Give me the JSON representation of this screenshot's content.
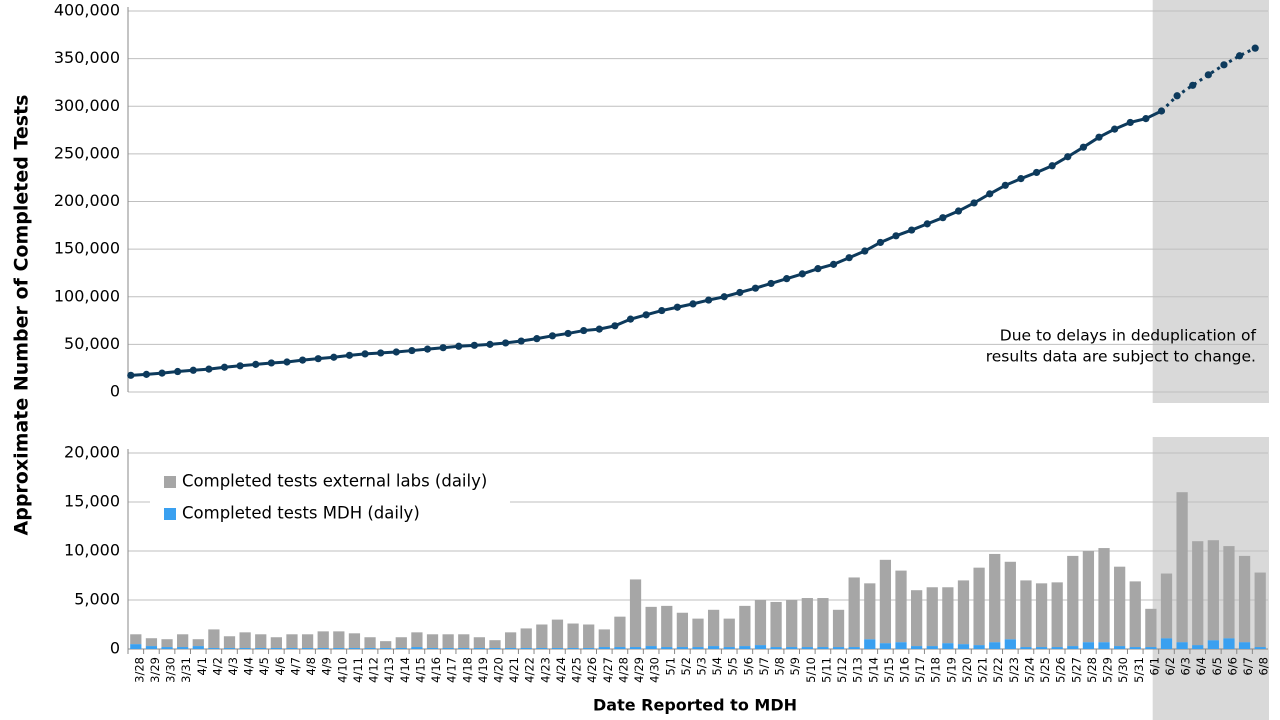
{
  "chart_data": [
    {
      "type": "line",
      "ylabel": "Approximate Number of Completed Tests",
      "color": "#0d3a5c",
      "values": [
        17500,
        18500,
        19800,
        21500,
        22800,
        24000,
        26000,
        27500,
        29000,
        30500,
        31500,
        33500,
        35000,
        36500,
        38500,
        40000,
        41000,
        42000,
        43500,
        45000,
        46500,
        48000,
        49000,
        50000,
        51500,
        53500,
        56000,
        59000,
        61500,
        64500,
        66000,
        69500,
        76500,
        81000,
        85500,
        89000,
        92500,
        96500,
        100000,
        104500,
        109000,
        114000,
        119000,
        124000,
        129500,
        134000,
        141000,
        148000,
        157000,
        164000,
        170000,
        176500,
        183000,
        190000,
        198500,
        208000,
        217000,
        224000,
        230500,
        237500,
        247000,
        257000,
        267500,
        276000,
        283000,
        287000,
        295000,
        311000,
        322000,
        333000,
        343500,
        353000,
        361000
      ],
      "ylim": [
        0,
        400000
      ],
      "yticks": [
        0,
        {
          "value": 50000,
          "label": "50,000"
        },
        {
          "value": 100000,
          "label": "100,000"
        },
        {
          "value": 150000,
          "label": "150,000"
        },
        {
          "value": 200000,
          "label": "200,000"
        },
        {
          "value": 250000,
          "label": "250,000"
        },
        {
          "value": 300000,
          "label": "300,000"
        },
        {
          "value": 350000,
          "label": "350,000"
        },
        {
          "value": 400000,
          "label": "400,000"
        }
      ],
      "grid": true,
      "annotation": [
        "Due to delays in deduplication of",
        "results data are subject to change."
      ]
    },
    {
      "type": "stacked-bar",
      "xlabel": "Date Reported to MDH",
      "legend": "upper left",
      "shade_start": "6/2",
      "categories": [
        "3/28",
        "3/29",
        "3/30",
        "3/31",
        "4/1",
        "4/2",
        "4/3",
        "4/4",
        "4/5",
        "4/6",
        "4/7",
        "4/8",
        "4/9",
        "4/10",
        "4/11",
        "4/12",
        "4/13",
        "4/14",
        "4/15",
        "4/16",
        "4/17",
        "4/18",
        "4/19",
        "4/20",
        "4/21",
        "4/22",
        "4/23",
        "4/24",
        "4/25",
        "4/26",
        "4/27",
        "4/28",
        "4/29",
        "4/30",
        "5/1",
        "5/2",
        "5/3",
        "5/4",
        "5/5",
        "5/6",
        "5/7",
        "5/8",
        "5/9",
        "5/10",
        "5/11",
        "5/12",
        "5/13",
        "5/14",
        "5/15",
        "5/16",
        "5/17",
        "5/18",
        "5/19",
        "5/20",
        "5/21",
        "5/22",
        "5/23",
        "5/24",
        "5/25",
        "5/26",
        "5/27",
        "5/28",
        "5/29",
        "5/30",
        "5/31",
        "6/1",
        "6/2",
        "6/3",
        "6/4",
        "6/5",
        "6/6",
        "6/7",
        "6/8"
      ],
      "series": [
        {
          "name": "Completed tests external labs (daily)",
          "color": "#a6a6a6",
          "values": [
            1000,
            800,
            800,
            1300,
            700,
            1900,
            1200,
            1600,
            1400,
            1100,
            1400,
            1400,
            1700,
            1700,
            1500,
            1100,
            700,
            1100,
            1500,
            1400,
            1400,
            1400,
            1100,
            800,
            1600,
            2000,
            2400,
            2900,
            2500,
            2400,
            1800,
            3100,
            6900,
            4000,
            4200,
            3500,
            2900,
            3700,
            2900,
            4100,
            4600,
            4600,
            4800,
            5000,
            5000,
            3800,
            7100,
            5700,
            8500,
            7300,
            5700,
            6000,
            5700,
            6500,
            7900,
            9000,
            7900,
            6800,
            6500,
            6600,
            9200,
            9300,
            9600,
            8100,
            6700,
            3900,
            6600,
            15300,
            10600,
            10200,
            9400,
            8800,
            7600
          ]
        },
        {
          "name": "Completed tests MDH (daily)",
          "color": "#3aa0f0",
          "values": [
            500,
            300,
            200,
            200,
            300,
            100,
            100,
            100,
            100,
            100,
            100,
            100,
            100,
            100,
            100,
            100,
            100,
            100,
            200,
            100,
            100,
            100,
            100,
            100,
            100,
            100,
            100,
            100,
            100,
            100,
            200,
            200,
            200,
            300,
            200,
            200,
            200,
            300,
            200,
            300,
            400,
            200,
            200,
            200,
            200,
            200,
            200,
            1000,
            600,
            700,
            300,
            300,
            600,
            500,
            400,
            700,
            1000,
            200,
            200,
            200,
            300,
            700,
            700,
            300,
            200,
            200,
            1100,
            700,
            400,
            900,
            1100,
            700,
            200
          ]
        }
      ],
      "ylim": [
        0,
        20000
      ],
      "yticks": [
        0,
        {
          "value": 5000,
          "label": "5,000"
        },
        {
          "value": 10000,
          "label": "10,000"
        },
        {
          "value": 15000,
          "label": "15,000"
        },
        {
          "value": 20000,
          "label": "20,000"
        }
      ],
      "grid": true
    }
  ]
}
